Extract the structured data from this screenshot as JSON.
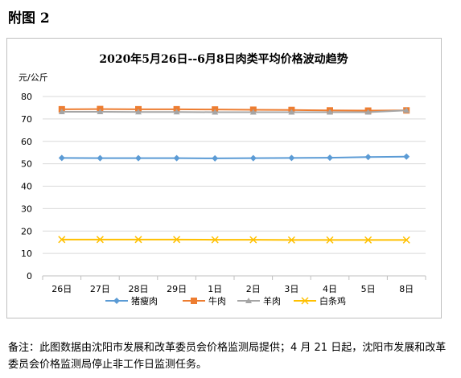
{
  "page": {
    "heading": "附图 2",
    "footnote": "备注：此图数据由沈阳市发展和改革委员会价格监测局提供；4 月 21 日起，沈阳市发展和改革委员会价格监测局停止非工作日监测任务。"
  },
  "chart_data": {
    "type": "line",
    "title": "2020年5月26日--6月8日肉类平均价格波动趋势",
    "ylabel": "元/公斤",
    "xlabel": "",
    "ylim": [
      0,
      80
    ],
    "yticks": [
      0,
      10,
      20,
      30,
      40,
      50,
      60,
      70,
      80
    ],
    "grid": true,
    "legend_position": "bottom",
    "categories": [
      "26日",
      "27日",
      "28日",
      "29日",
      "1日",
      "2日",
      "3日",
      "4日",
      "5日",
      "8日"
    ],
    "series": [
      {
        "name": "猪瘦肉",
        "color": "#5b9bd5",
        "marker": "diamond",
        "values": [
          52.6,
          52.5,
          52.5,
          52.5,
          52.4,
          52.5,
          52.6,
          52.7,
          53.0,
          53.2
        ]
      },
      {
        "name": "牛肉",
        "color": "#ed7d31",
        "marker": "square",
        "values": [
          74.3,
          74.4,
          74.3,
          74.3,
          74.2,
          74.1,
          74.0,
          73.8,
          73.7,
          73.8
        ]
      },
      {
        "name": "羊肉",
        "color": "#a5a5a5",
        "marker": "triangle",
        "values": [
          73.2,
          73.2,
          73.1,
          73.1,
          73.0,
          73.0,
          73.0,
          73.0,
          73.0,
          73.8
        ]
      },
      {
        "name": "白条鸡",
        "color": "#ffc000",
        "marker": "cross",
        "values": [
          16.2,
          16.2,
          16.2,
          16.2,
          16.1,
          16.1,
          16.0,
          16.0,
          16.0,
          16.0
        ]
      }
    ]
  }
}
